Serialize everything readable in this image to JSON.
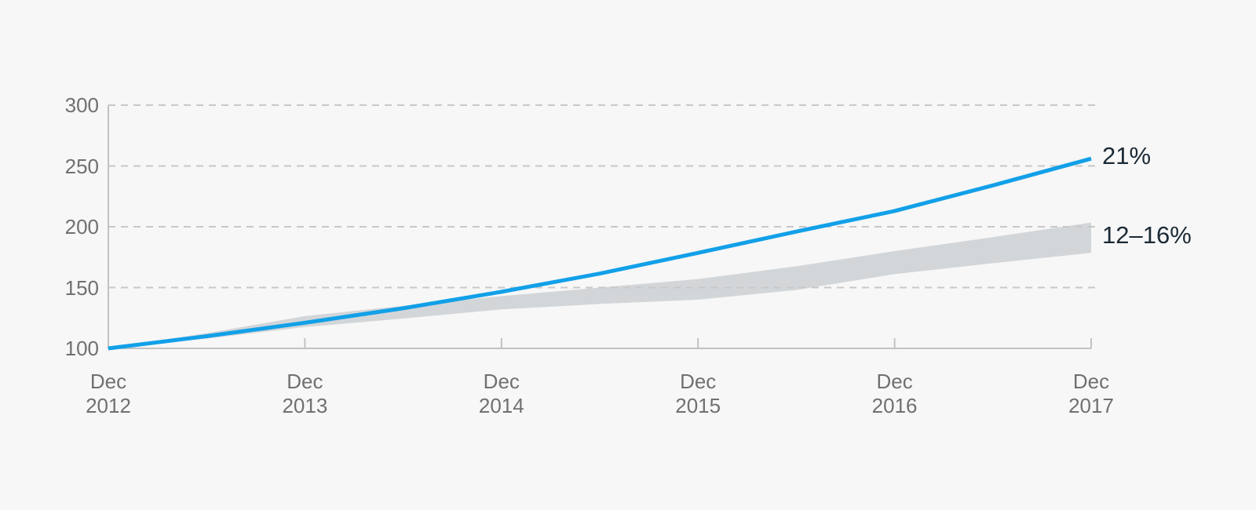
{
  "colors": {
    "background": "#F7F7F7",
    "line": "#12A0E8",
    "band": "#D3D6D9",
    "grid": "#C8C8C8",
    "axis": "#C2C2C2",
    "tick_label": "#707070",
    "annotation": "#1B2A35"
  },
  "chart_data": {
    "type": "line",
    "title": "",
    "xlabel": "",
    "ylabel": "",
    "categories": [
      "Dec 2012",
      "Dec 2013",
      "Dec 2014",
      "Dec 2015",
      "Dec 2016",
      "Dec 2017"
    ],
    "ylim": [
      100,
      300
    ],
    "yticks": [
      100,
      150,
      200,
      250,
      300
    ],
    "grid": {
      "horizontal": "dashed",
      "vertical": false
    },
    "legend_position": "right-of-line-ends",
    "axis_x": {
      "start_year": 2012,
      "end_year": 2017
    },
    "series": [
      {
        "name": "21%",
        "type": "line",
        "annotation": "21%",
        "color": "#12A0E8",
        "values": [
          100,
          121,
          146.5,
          178.5,
          213,
          256
        ]
      },
      {
        "name": "12–16%",
        "type": "band",
        "annotation": "12–16%",
        "color": "#D3D6D9",
        "low": [
          100,
          117.5,
          132,
          140,
          161,
          178.5
        ],
        "high": [
          100,
          126.5,
          143,
          157,
          180,
          203.5
        ]
      }
    ],
    "samples": {
      "x_years": [
        2012,
        2012.5,
        2013,
        2013.5,
        2014,
        2014.5,
        2015,
        2015.5,
        2016,
        2016.5,
        2017
      ],
      "line": [
        100,
        110,
        121,
        133,
        146.5,
        161.5,
        178.5,
        196,
        213,
        234,
        256
      ],
      "band_low": [
        100,
        108,
        117.5,
        124.5,
        132,
        136.5,
        140,
        148,
        161,
        170,
        178.5
      ],
      "band_high": [
        100,
        112.5,
        126.5,
        135,
        143,
        150,
        157,
        167.5,
        180,
        191.5,
        203.5
      ]
    }
  }
}
